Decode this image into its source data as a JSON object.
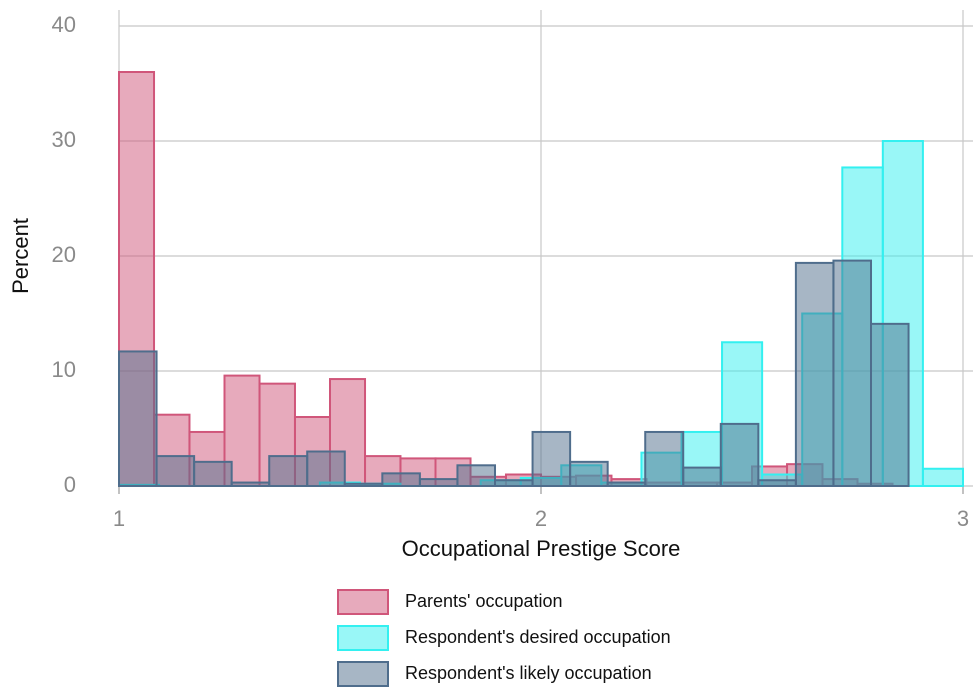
{
  "chart_data": {
    "type": "histogram",
    "xlabel": "Occupational Prestige Score",
    "ylabel": "Percent",
    "xlim": [
      1,
      3
    ],
    "ylim": [
      0,
      40
    ],
    "xticks": [
      1,
      2,
      3
    ],
    "yticks": [
      0,
      10,
      20,
      30,
      40
    ],
    "grid": true,
    "legend": "bottom",
    "series": [
      {
        "name": "Parents' occupation",
        "color": "#d0567a",
        "bins": [
          1,
          1.083,
          1.167,
          1.25,
          1.333,
          1.417,
          1.5,
          1.583,
          1.667,
          1.75,
          1.833,
          1.917,
          2,
          2.083,
          2.167,
          2.25,
          2.333,
          2.417,
          2.5,
          2.583,
          2.667,
          2.75,
          2.833
        ],
        "values": [
          36,
          6.2,
          4.7,
          9.6,
          8.9,
          6.0,
          9.3,
          2.6,
          2.4,
          2.4,
          0.8,
          1.0,
          0.8,
          0.9,
          0.6,
          0.3,
          0.3,
          0.3,
          1.7,
          1.9,
          0.6,
          0.2
        ]
      },
      {
        "name": "Respondent's desired occupation",
        "color": "#33f0f0",
        "bins": [
          1,
          1.095,
          1.19,
          1.286,
          1.381,
          1.476,
          1.571,
          1.667,
          1.762,
          1.857,
          1.952,
          2.048,
          2.143,
          2.238,
          2.333,
          2.429,
          2.524,
          2.619,
          2.714,
          2.81,
          2.905,
          3
        ],
        "values": [
          0.1,
          0,
          0,
          0,
          0,
          0.3,
          0.2,
          0,
          0,
          0.5,
          0.7,
          1.8,
          0.3,
          2.9,
          4.7,
          12.5,
          1.0,
          15,
          27.7,
          30,
          1.5
        ]
      },
      {
        "name": "Respondent's likely occupation",
        "color": "#4f6d8c",
        "bins": [
          1,
          1.089,
          1.178,
          1.267,
          1.356,
          1.446,
          1.535,
          1.624,
          1.713,
          1.802,
          1.891,
          1.98,
          2.069,
          2.158,
          2.247,
          2.337,
          2.426,
          2.515,
          2.604,
          2.693,
          2.782,
          2.871
        ],
        "values": [
          11.7,
          2.6,
          2.1,
          0.3,
          2.6,
          3.0,
          0.2,
          1.1,
          0.6,
          1.8,
          0.5,
          4.7,
          2.1,
          0.3,
          4.7,
          1.6,
          5.4,
          0.5,
          19.4,
          19.6,
          14.1
        ]
      }
    ]
  }
}
